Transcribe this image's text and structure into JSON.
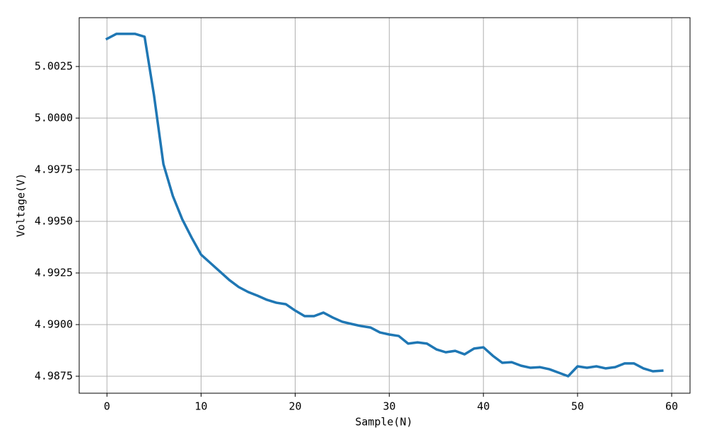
{
  "chart_data": {
    "type": "line",
    "xlabel": "Sample(N)",
    "ylabel": "Voltage(V)",
    "x": [
      0,
      1,
      2,
      3,
      4,
      5,
      6,
      7,
      8,
      9,
      10,
      11,
      12,
      13,
      14,
      15,
      16,
      17,
      18,
      19,
      20,
      21,
      22,
      23,
      24,
      25,
      26,
      27,
      28,
      29,
      30,
      31,
      32,
      33,
      34,
      35,
      36,
      37,
      38,
      39,
      40,
      41,
      42,
      43,
      44,
      45,
      46,
      47,
      48,
      49,
      50,
      51,
      52,
      53,
      54,
      55,
      56,
      57,
      58,
      59
    ],
    "values": [
      5.00384,
      5.00408,
      5.00408,
      5.00408,
      5.00394,
      5.0011,
      4.99777,
      4.99623,
      4.9951,
      4.99421,
      4.99339,
      4.99298,
      4.99257,
      4.99216,
      4.99182,
      4.99158,
      4.9914,
      4.9912,
      4.99106,
      4.99099,
      4.99068,
      4.99041,
      4.99041,
      4.99058,
      4.99034,
      4.99014,
      4.99003,
      4.98993,
      4.98986,
      4.98962,
      4.98952,
      4.98945,
      4.98908,
      4.98914,
      4.98908,
      4.9888,
      4.98866,
      4.98873,
      4.98856,
      4.98884,
      4.9889,
      4.98849,
      4.98815,
      4.98818,
      4.98801,
      4.98791,
      4.98794,
      4.98784,
      4.98767,
      4.9875,
      4.98798,
      4.98791,
      4.98798,
      4.98788,
      4.98794,
      4.98812,
      4.98812,
      4.98788,
      4.98774,
      4.98777
    ],
    "color": "#1f77b4",
    "xlim": [
      -2.95,
      61.95
    ],
    "xticks": [
      0,
      10,
      20,
      30,
      40,
      50,
      60
    ],
    "ylim": [
      4.986678,
      5.004864
    ],
    "yticks": [
      4.9875,
      {
        "value": 4.99,
        "label": "4.9900"
      },
      4.9925,
      {
        "value": 4.995,
        "label": "4.9950"
      },
      4.9975,
      {
        "value": 5,
        "label": "5.0000"
      },
      5.0025
    ],
    "grid": true
  }
}
